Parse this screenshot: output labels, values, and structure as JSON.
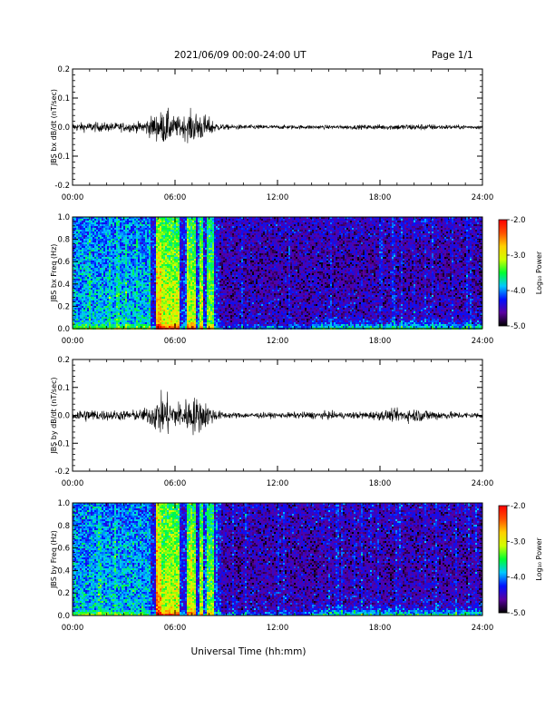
{
  "header": {
    "title": "2021/06/09  00:00-24:00 UT",
    "page": "Page 1/1"
  },
  "footer": {
    "xlabel": "Universal Time (hh:mm)"
  },
  "colorbar": {
    "label": "Log₁₀ Power",
    "ticks": [
      "-2.0",
      "-3.0",
      "-4.0",
      "-5.0"
    ],
    "range": [
      -5.0,
      -2.0
    ],
    "colors": [
      "#000000",
      "#5a00a0",
      "#0010ff",
      "#00c8ff",
      "#00ff30",
      "#d0ff00",
      "#ffd000",
      "#ff5000",
      "#ff0000"
    ]
  },
  "chart_data": [
    {
      "type": "line",
      "ylabel": "JBS bx dB/dt (nT/sec)",
      "xlim": [
        0,
        24
      ],
      "ylim": [
        -0.2,
        0.2
      ],
      "yticks": [
        "0.2",
        "0.1",
        "0.0",
        "-0.1",
        "-0.2"
      ],
      "xticks": [
        "00:00",
        "06:00",
        "12:00",
        "18:00",
        "24:00"
      ],
      "color": "#000000",
      "series": [
        {
          "x": [
            0,
            1,
            2,
            3,
            4,
            4.5,
            5,
            5.5,
            6,
            6.5,
            7,
            7.5,
            8,
            8.5,
            9,
            10,
            11,
            12,
            13,
            14,
            15,
            16,
            17,
            18,
            19,
            20,
            21,
            22,
            23,
            24
          ],
          "amplitude": [
            0.012,
            0.015,
            0.014,
            0.014,
            0.016,
            0.03,
            0.045,
            0.055,
            0.03,
            0.035,
            0.05,
            0.045,
            0.03,
            0.012,
            0.008,
            0.007,
            0.007,
            0.006,
            0.006,
            0.006,
            0.006,
            0.006,
            0.007,
            0.008,
            0.009,
            0.01,
            0.009,
            0.007,
            0.006,
            0.006
          ]
        }
      ]
    },
    {
      "type": "heatmap",
      "ylabel": "JBS bx Freq (Hz)",
      "xlim": [
        0,
        24
      ],
      "ylim": [
        0.0,
        1.0
      ],
      "yticks": [
        "1.0",
        "0.8",
        "0.6",
        "0.4",
        "0.2",
        "0.0"
      ],
      "xticks": [
        "00:00",
        "06:00",
        "12:00",
        "18:00",
        "24:00"
      ]
    },
    {
      "type": "line",
      "ylabel": "JBS by dB/dt (nT/sec)",
      "xlim": [
        0,
        24
      ],
      "ylim": [
        -0.2,
        0.2
      ],
      "yticks": [
        "0.2",
        "0.1",
        "0.0",
        "-0.1",
        "-0.2"
      ],
      "xticks": [
        "00:00",
        "06:00",
        "12:00",
        "18:00",
        "24:00"
      ],
      "color": "#000000",
      "series": [
        {
          "x": [
            0,
            1,
            2,
            3,
            4,
            4.5,
            5,
            5.5,
            6,
            6.5,
            7,
            7.5,
            8,
            8.5,
            9,
            10,
            11,
            12,
            13,
            14,
            15,
            16,
            17,
            18,
            19,
            20,
            21,
            22,
            23,
            24
          ],
          "amplitude": [
            0.02,
            0.02,
            0.016,
            0.016,
            0.018,
            0.03,
            0.06,
            0.07,
            0.04,
            0.05,
            0.06,
            0.055,
            0.035,
            0.015,
            0.01,
            0.009,
            0.009,
            0.008,
            0.01,
            0.012,
            0.012,
            0.01,
            0.012,
            0.015,
            0.02,
            0.022,
            0.018,
            0.012,
            0.01,
            0.01
          ]
        }
      ]
    },
    {
      "type": "heatmap",
      "ylabel": "JBS by Freq (Hz)",
      "xlim": [
        0,
        24
      ],
      "ylim": [
        0.0,
        1.0
      ],
      "yticks": [
        "1.0",
        "0.8",
        "0.6",
        "0.4",
        "0.2",
        "0.0"
      ],
      "xticks": [
        "00:00",
        "06:00",
        "12:00",
        "18:00",
        "24:00"
      ]
    }
  ]
}
